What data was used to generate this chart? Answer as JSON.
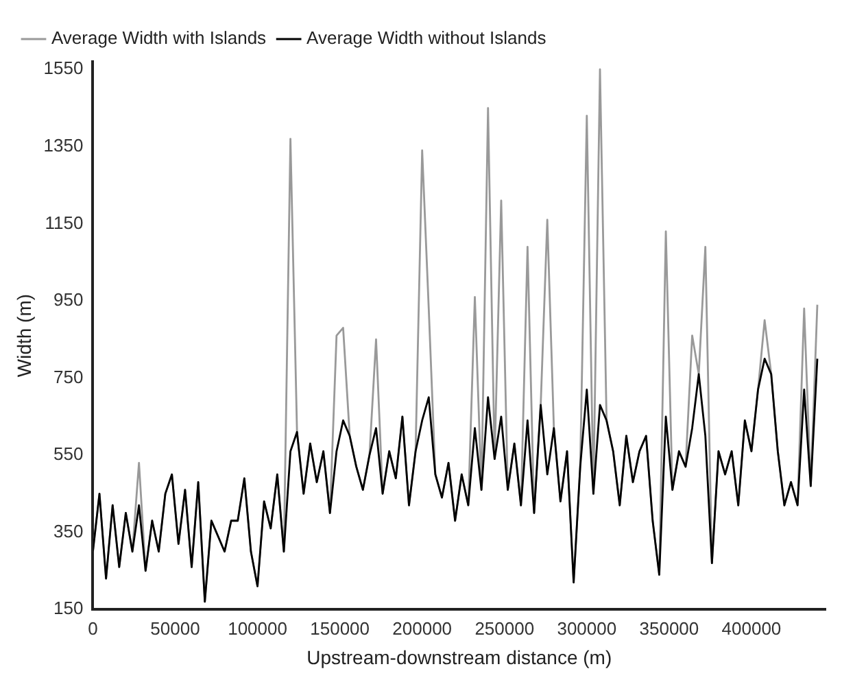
{
  "chart_data": {
    "type": "line",
    "xlabel": "Upstream-downstream distance (m)",
    "ylabel": "Width (m)",
    "x": [
      0,
      4000,
      8000,
      12000,
      16000,
      20000,
      24000,
      28000,
      32000,
      36000,
      40000,
      44000,
      48000,
      52000,
      56000,
      60000,
      64000,
      68000,
      72000,
      76000,
      80000,
      84000,
      88000,
      92000,
      96000,
      100000,
      104000,
      108000,
      112000,
      116000,
      120000,
      124000,
      128000,
      132000,
      136000,
      140000,
      144000,
      148000,
      152000,
      156000,
      160000,
      164000,
      168000,
      172000,
      176000,
      180000,
      184000,
      188000,
      192000,
      196000,
      200000,
      204000,
      208000,
      212000,
      216000,
      220000,
      224000,
      228000,
      232000,
      236000,
      240000,
      244000,
      248000,
      252000,
      256000,
      260000,
      264000,
      268000,
      272000,
      276000,
      280000,
      284000,
      288000,
      292000,
      296000,
      300000,
      304000,
      308000,
      312000,
      316000,
      320000,
      324000,
      328000,
      332000,
      336000,
      340000,
      344000,
      348000,
      352000,
      356000,
      360000,
      364000,
      368000,
      372000,
      376000,
      380000,
      384000,
      388000,
      392000,
      396000,
      400000,
      404000,
      408000,
      412000,
      416000,
      420000,
      424000,
      428000,
      432000,
      436000,
      440000
    ],
    "series": [
      {
        "name": "Average Width with Islands",
        "color": "#999999",
        "values": [
          300,
          450,
          230,
          420,
          260,
          400,
          300,
          530,
          250,
          380,
          300,
          450,
          500,
          320,
          460,
          260,
          480,
          170,
          380,
          340,
          300,
          380,
          380,
          490,
          300,
          210,
          430,
          360,
          500,
          300,
          1370,
          610,
          450,
          580,
          480,
          560,
          400,
          860,
          880,
          600,
          520,
          460,
          550,
          850,
          450,
          560,
          490,
          650,
          420,
          560,
          1340,
          930,
          500,
          440,
          530,
          380,
          500,
          420,
          960,
          460,
          1450,
          540,
          1210,
          460,
          580,
          420,
          1090,
          400,
          680,
          1160,
          620,
          430,
          560,
          220,
          520,
          1430,
          450,
          1550,
          640,
          560,
          420,
          600,
          480,
          560,
          600,
          380,
          240,
          1130,
          460,
          560,
          520,
          860,
          760,
          1090,
          270,
          560,
          500,
          560,
          420,
          640,
          560,
          720,
          900,
          760,
          560,
          420,
          480,
          420,
          930,
          470,
          940
        ]
      },
      {
        "name": "Average Width without Islands",
        "color": "#000000",
        "values": [
          300,
          450,
          230,
          420,
          260,
          400,
          300,
          420,
          250,
          380,
          300,
          450,
          500,
          320,
          460,
          260,
          480,
          170,
          380,
          340,
          300,
          380,
          380,
          490,
          300,
          210,
          430,
          360,
          500,
          300,
          560,
          610,
          450,
          580,
          480,
          560,
          400,
          560,
          640,
          600,
          520,
          460,
          550,
          620,
          450,
          560,
          490,
          650,
          420,
          560,
          640,
          700,
          500,
          440,
          530,
          380,
          500,
          420,
          620,
          460,
          700,
          540,
          650,
          460,
          580,
          420,
          640,
          400,
          680,
          500,
          620,
          430,
          560,
          220,
          520,
          720,
          450,
          680,
          640,
          560,
          420,
          600,
          480,
          560,
          600,
          380,
          240,
          650,
          460,
          560,
          520,
          620,
          760,
          600,
          270,
          560,
          500,
          560,
          420,
          640,
          560,
          720,
          800,
          760,
          560,
          420,
          480,
          420,
          720,
          470,
          800
        ]
      }
    ],
    "xlim": [
      0,
      445000
    ],
    "xticks": [
      0,
      50000,
      100000,
      150000,
      200000,
      250000,
      300000,
      350000,
      400000
    ],
    "ylim": [
      150,
      1570
    ],
    "yticks": [
      150,
      350,
      550,
      750,
      950,
      1150,
      1350,
      1550
    ],
    "grid": false,
    "legend": "top left",
    "marker": "none",
    "line_style": "solid"
  }
}
